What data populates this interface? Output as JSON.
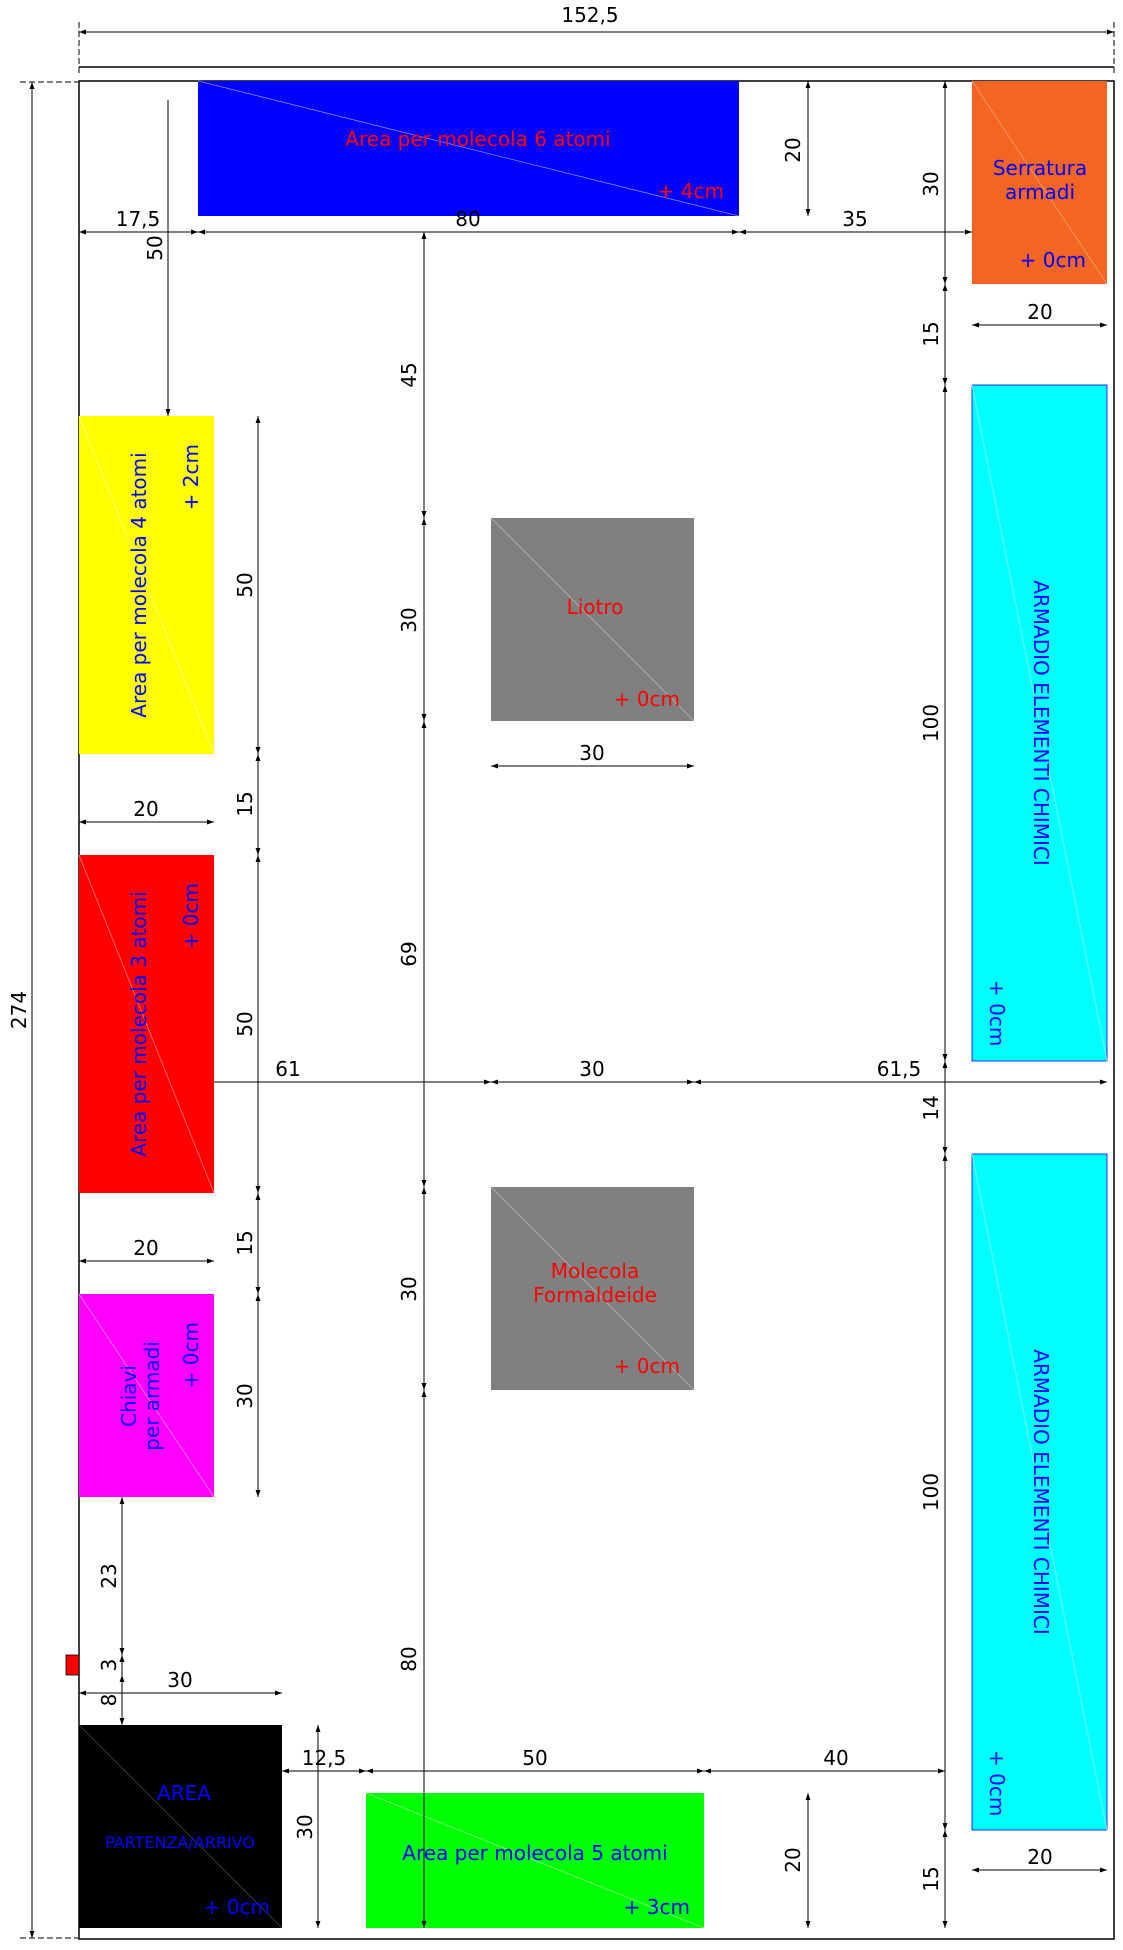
{
  "overall": {
    "width": "152,5",
    "height": "274"
  },
  "areas": {
    "six_atoms": {
      "name": "Area per molecola 6 atomi",
      "offset": "+ 4cm",
      "color": "#0000ff",
      "text_color": "#ff0000"
    },
    "locks": {
      "name_line1": "Serratura",
      "name_line2": "armadi",
      "offset": "+ 0cm",
      "color": "#f26522",
      "text_color": "#0000ff"
    },
    "four_atoms": {
      "name": "Area per molecola 4 atomi",
      "offset": "+ 2cm",
      "color": "#ffff00",
      "text_color": "#0000ff"
    },
    "three_atoms": {
      "name": "Area per molecola 3 atomi",
      "offset": "+ 0cm",
      "color": "#ff0000",
      "text_color": "#0000ff"
    },
    "keys": {
      "name_line1": "Chiavi",
      "name_line2": "per armadi",
      "offset": "+ 0cm",
      "color": "#ff00ff",
      "text_color": "#0000ff"
    },
    "start": {
      "name_line1": "AREA",
      "name_line2": "PARTENZA/ARRIVO",
      "offset": "+ 0cm",
      "color": "#000000",
      "text_color": "#0000ff"
    },
    "five_atoms": {
      "name": "Area per molecola 5 atomi",
      "offset": "+ 3cm",
      "color": "#00ff00",
      "text_color": "#0000ff"
    },
    "liotro": {
      "name": "Liotro",
      "offset": "+ 0cm",
      "color": "#808080",
      "text_color": "#ff0000"
    },
    "formaldeide": {
      "name_line1": "Molecola",
      "name_line2": "Formaldeide",
      "offset": "+ 0cm",
      "color": "#808080",
      "text_color": "#ff0000"
    },
    "cabinet_top": {
      "name": "ARMADIO ELEMENTI CHIMICI",
      "offset": "+ 0cm",
      "color": "#00ffff",
      "text_color": "#0000ff"
    },
    "cabinet_bottom": {
      "name": "ARMADIO ELEMENTI CHIMICI",
      "offset": "+ 0cm",
      "color": "#00ffff",
      "text_color": "#0000ff"
    }
  },
  "dimensions": {
    "left_margin_top": "17,5",
    "six_atoms_width": "80",
    "six_atoms_to_right": "35",
    "six_atoms_height": "20",
    "left_top_gap": "50",
    "locks_height": "30",
    "locks_width": "20",
    "locks_gap": "15",
    "cabinet_top_height": "100",
    "center_top_gap": "45",
    "liotro_height": "30",
    "liotro_width": "30",
    "center_mid_gap": "69",
    "center_bottom_gap": "80",
    "four_atoms_height": "50",
    "four_atoms_to_three_gap": "15",
    "four_atoms_width": "20",
    "three_atoms_height": "50",
    "three_atoms_width": "20",
    "mid_left": "61",
    "mid_center": "30",
    "mid_right": "61,5",
    "cabinet_gap": "14",
    "three_to_keys_gap": "15",
    "formaldeide_height": "30",
    "keys_height": "30",
    "keys_to_marker": "23",
    "marker_height": "3",
    "marker_to_start": "8",
    "start_width": "30",
    "start_height": "30",
    "start_to_five": "12,5",
    "five_atoms_width": "50",
    "five_to_cabinet": "40",
    "five_atoms_height": "20",
    "cabinet_bottom_height": "100",
    "cabinet_bottom_gap": "15",
    "cabinet_bottom_width": "20"
  }
}
